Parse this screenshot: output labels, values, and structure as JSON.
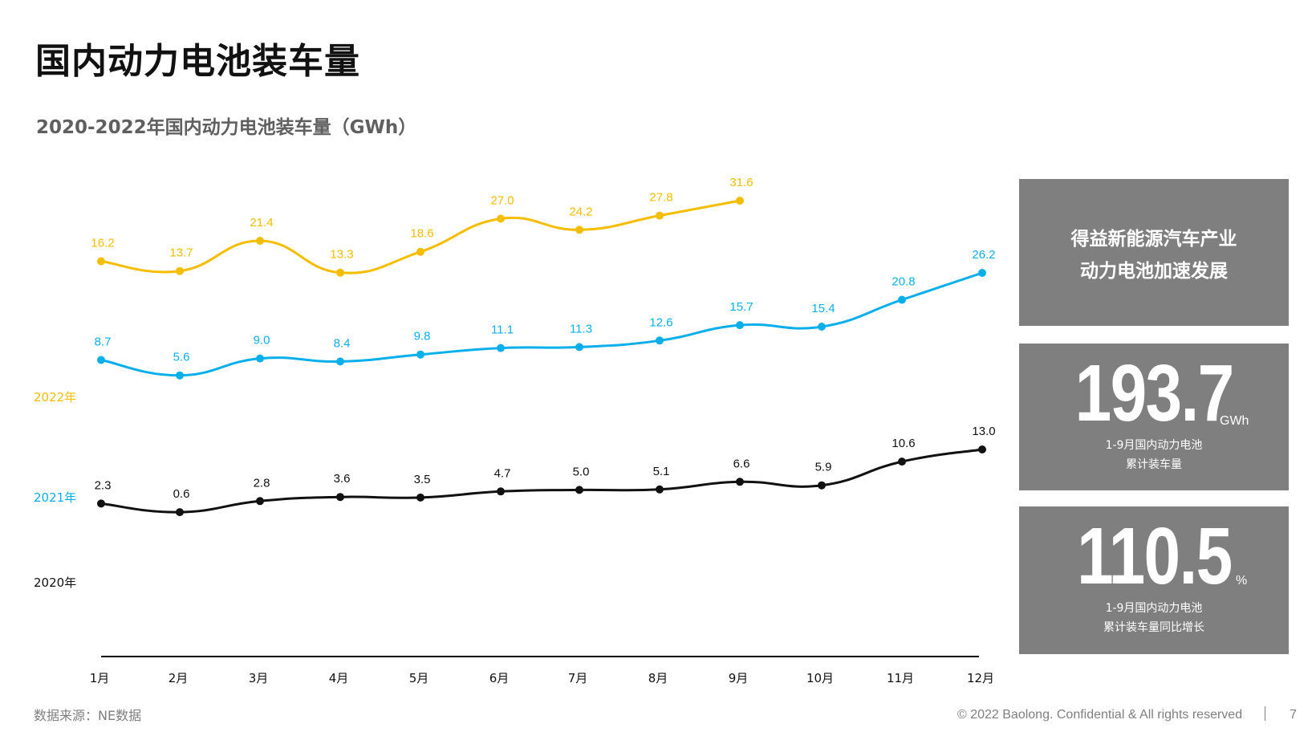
{
  "page": {
    "title": "国内动力电池装车量",
    "source": "数据来源：NE数据",
    "copyright": "© 2022 Baolong. Confidential & All rights reserved",
    "page_number": "7"
  },
  "colors": {
    "y2022": "#F5BD00",
    "y2021": "#0AAFEA",
    "y2020": "#111111",
    "panel": "#7F7F7F"
  },
  "panels": {
    "headline": {
      "line1": "得益新能源汽车产业",
      "line2": "动力电池加速发展"
    },
    "total": {
      "value": "193.7",
      "unit": "GWh",
      "desc1": "1-9月国内动力电池",
      "desc2": "累计装车量"
    },
    "growth": {
      "value": "110.5",
      "unit": "%",
      "desc1": "1-9月国内动力电池",
      "desc2": "累计装车量同比增长"
    }
  },
  "chart_data": {
    "type": "line",
    "title": "2020-2022年国内动力电池装车量（GWh）",
    "categories": [
      "1月",
      "2月",
      "3月",
      "4月",
      "5月",
      "6月",
      "7月",
      "8月",
      "9月",
      "10月",
      "11月",
      "12月"
    ],
    "series": [
      {
        "name": "2022年",
        "color": "#F5BD00",
        "values": [
          16.2,
          13.7,
          21.4,
          13.3,
          18.6,
          27.0,
          24.2,
          27.8,
          31.6,
          null,
          null,
          null
        ]
      },
      {
        "name": "2021年",
        "color": "#0AAFEA",
        "values": [
          8.7,
          5.6,
          9.0,
          8.4,
          9.8,
          11.1,
          11.3,
          12.6,
          15.7,
          15.4,
          20.8,
          26.2
        ]
      },
      {
        "name": "2020年",
        "color": "#111111",
        "values": [
          2.3,
          0.6,
          2.8,
          3.6,
          3.5,
          4.7,
          5.0,
          5.1,
          6.6,
          5.9,
          10.6,
          13.0
        ]
      }
    ],
    "xlabel": "",
    "ylabel": "GWh",
    "grid": false,
    "legend": "left, inline series labels"
  }
}
